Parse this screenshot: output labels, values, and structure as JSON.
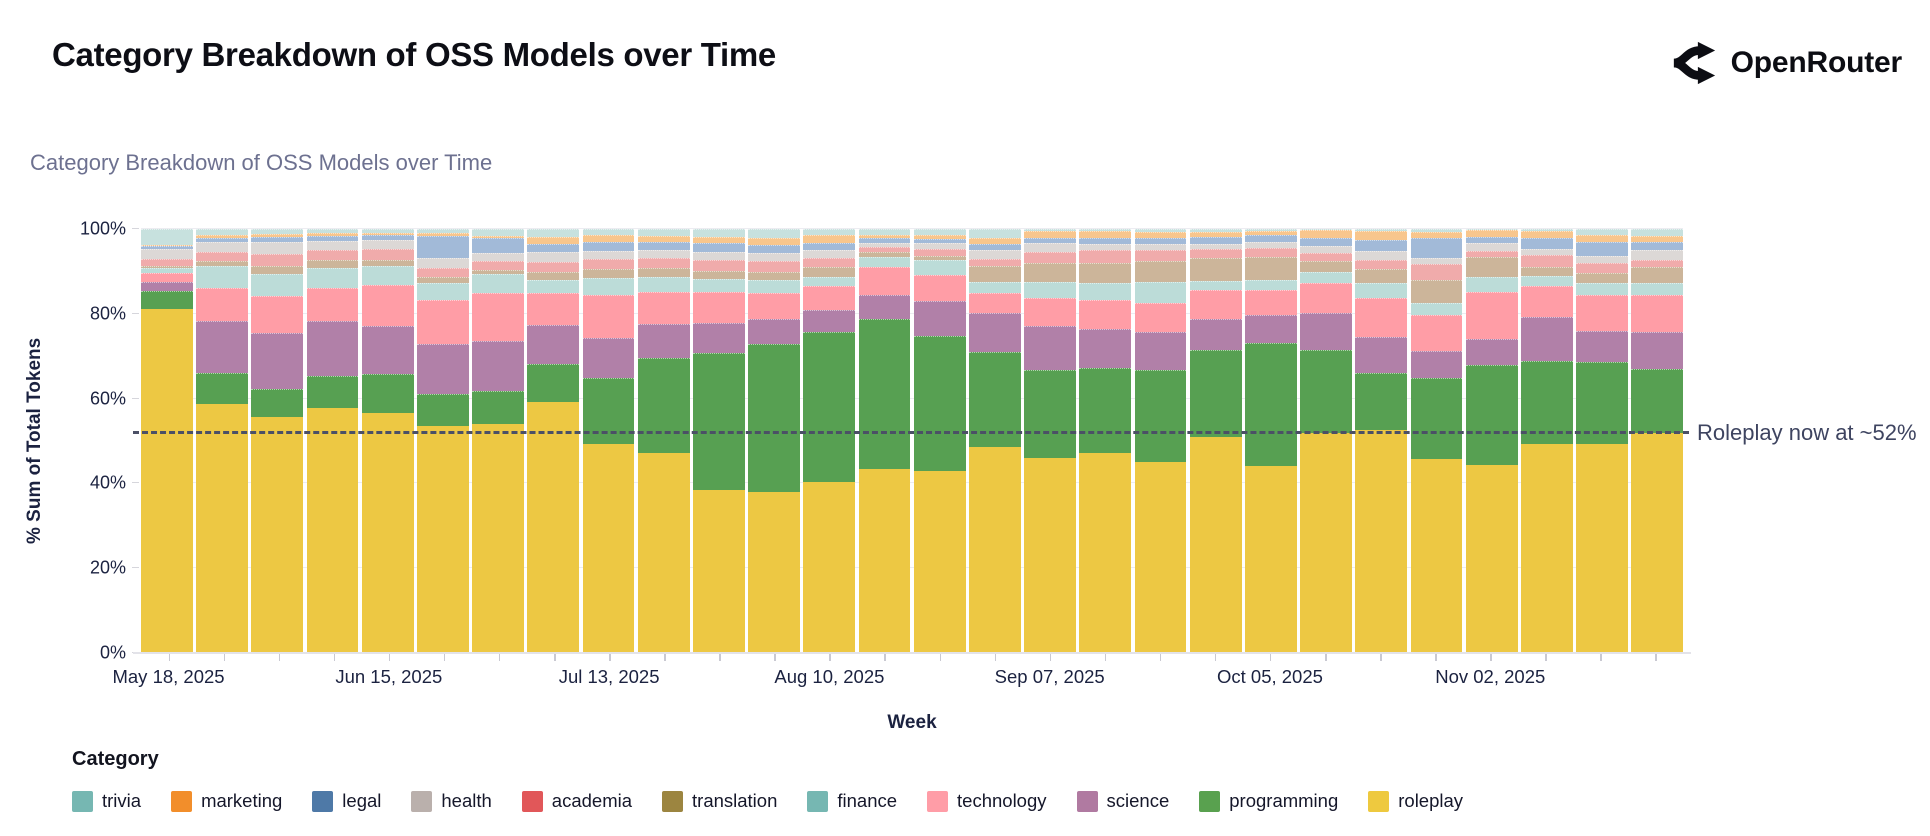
{
  "header": {
    "title": "Category Breakdown of OSS Models over Time",
    "logo_text": "OpenRouter"
  },
  "chart_data": {
    "type": "bar",
    "variant": "stacked-100-percent",
    "title": "Category Breakdown of OSS Models over Time",
    "xlabel": "Week",
    "ylabel": "% Sum of Total Tokens",
    "ylim": [
      0,
      100
    ],
    "grid": "horizontal",
    "legend_position": "bottom",
    "n_bars": 28,
    "y_ticks": [
      {
        "value": 0,
        "label": "0%"
      },
      {
        "value": 20,
        "label": "20%"
      },
      {
        "value": 40,
        "label": "40%"
      },
      {
        "value": 60,
        "label": "60%"
      },
      {
        "value": 80,
        "label": "80%"
      },
      {
        "value": 100,
        "label": "100%"
      }
    ],
    "x_ticks": [
      {
        "index": 0,
        "label": "May 18, 2025"
      },
      {
        "index": 4,
        "label": "Jun 15, 2025"
      },
      {
        "index": 8,
        "label": "Jul 13, 2025"
      },
      {
        "index": 12,
        "label": "Aug 10, 2025"
      },
      {
        "index": 16,
        "label": "Sep 07, 2025"
      },
      {
        "index": 20,
        "label": "Oct 05, 2025"
      },
      {
        "index": 24,
        "label": "Nov 02, 2025"
      }
    ],
    "series": [
      {
        "name": "roleplay",
        "bar_color": "#edc843",
        "legend_color": "#eec93f",
        "values": [
          81.2,
          58.7,
          55.7,
          57.8,
          56.7,
          53.6,
          54.0,
          59.3,
          49.2,
          47.1,
          38.4,
          38.0,
          40.4,
          43.4,
          43.0,
          48.6,
          46.0,
          47.2,
          45.1,
          51.0,
          44.1,
          52.0,
          52.6,
          45.7,
          44.3,
          49.4,
          49.4,
          51.8
        ]
      },
      {
        "name": "programming",
        "bar_color": "#57a052",
        "legend_color": "#59a14f",
        "values": [
          4.3,
          7.4,
          6.6,
          7.5,
          9.1,
          7.6,
          7.8,
          8.9,
          15.6,
          22.4,
          32.4,
          35.0,
          35.4,
          35.4,
          31.8,
          22.4,
          20.7,
          20.0,
          21.6,
          20.5,
          29.0,
          19.5,
          13.5,
          19.1,
          23.6,
          19.5,
          19.3,
          15.3
        ]
      },
      {
        "name": "science",
        "bar_color": "#b180a8",
        "legend_color": "#b07aa1",
        "values": [
          2.1,
          12.2,
          13.2,
          13.0,
          11.4,
          11.7,
          11.8,
          9.2,
          9.6,
          8.1,
          7.0,
          5.7,
          5.1,
          5.6,
          8.2,
          9.2,
          10.5,
          9.2,
          9.1,
          7.2,
          6.6,
          8.6,
          8.5,
          6.5,
          6.1,
          10.3,
          7.3,
          8.7
        ]
      },
      {
        "name": "technology",
        "bar_color": "#ff9da6",
        "legend_color": "#ff9da7",
        "values": [
          2.1,
          7.7,
          8.8,
          7.8,
          9.6,
          10.4,
          11.3,
          7.4,
          10.0,
          7.6,
          7.4,
          6.3,
          5.7,
          6.7,
          6.2,
          4.7,
          6.5,
          6.9,
          6.8,
          6.9,
          5.9,
          7.1,
          9.1,
          8.4,
          11.2,
          7.4,
          8.4,
          8.6
        ]
      },
      {
        "name": "finance",
        "bar_color": "#bcdcd8",
        "legend_color": "#76b7b2",
        "values": [
          1.2,
          5.4,
          5.0,
          4.7,
          4.4,
          3.9,
          4.5,
          3.2,
          4.0,
          3.5,
          2.9,
          3.0,
          2.1,
          2.4,
          3.5,
          2.6,
          3.9,
          3.9,
          5.0,
          2.2,
          2.3,
          2.7,
          3.5,
          2.9,
          3.4,
          2.3,
          2.8,
          2.8
        ]
      },
      {
        "name": "translation",
        "bar_color": "#ccb59a",
        "legend_color": "#9c8540",
        "values": [
          0.5,
          1.1,
          2.1,
          1.8,
          1.4,
          1.5,
          1.0,
          1.9,
          2.1,
          2.0,
          2.1,
          1.9,
          2.3,
          1.0,
          1.0,
          3.9,
          4.5,
          4.8,
          4.9,
          5.4,
          5.5,
          2.6,
          3.3,
          5.5,
          4.7,
          2.1,
          2.4,
          3.8
        ]
      },
      {
        "name": "academia",
        "bar_color": "#f0abab",
        "legend_color": "#e15759",
        "values": [
          1.6,
          2.1,
          2.8,
          2.5,
          2.6,
          2.0,
          2.0,
          2.4,
          2.4,
          2.4,
          2.5,
          2.6,
          2.1,
          1.3,
          1.5,
          1.6,
          2.6,
          3.0,
          2.5,
          2.1,
          2.1,
          1.9,
          2.2,
          3.6,
          1.6,
          2.9,
          2.3,
          1.7
        ]
      },
      {
        "name": "health",
        "bar_color": "#dcd8d6",
        "legend_color": "#bab0ac",
        "values": [
          2.4,
          2.4,
          2.8,
          2.0,
          2.2,
          2.4,
          2.0,
          2.2,
          1.9,
          1.9,
          2.0,
          1.9,
          1.9,
          1.0,
          1.5,
          2.0,
          1.9,
          1.5,
          1.5,
          1.3,
          1.5,
          1.6,
          2.1,
          1.5,
          1.7,
          1.5,
          1.7,
          2.3
        ]
      },
      {
        "name": "legal",
        "bar_color": "#a2bad8",
        "legend_color": "#4e79a7",
        "values": [
          0.6,
          1.0,
          1.2,
          1.3,
          1.1,
          5.3,
          3.4,
          2.0,
          2.1,
          2.0,
          1.9,
          1.8,
          1.8,
          1.0,
          1.0,
          1.5,
          1.4,
          1.5,
          1.5,
          1.6,
          1.5,
          2.0,
          2.6,
          4.6,
          1.6,
          2.6,
          3.4,
          2.0
        ]
      },
      {
        "name": "marketing",
        "bar_color": "#f8c68d",
        "legend_color": "#f28e2b",
        "values": [
          0.3,
          0.5,
          0.6,
          0.7,
          0.5,
          0.6,
          0.6,
          1.6,
          1.7,
          1.3,
          1.6,
          1.8,
          1.8,
          0.8,
          0.8,
          1.5,
          1.6,
          1.5,
          1.4,
          1.2,
          1.0,
          1.7,
          2.2,
          1.4,
          1.5,
          1.6,
          1.6,
          1.3
        ]
      },
      {
        "name": "trivia",
        "bar_color": "#c7e1de",
        "legend_color": "#76b7b2",
        "values": [
          3.7,
          1.5,
          1.2,
          0.9,
          1.0,
          1.0,
          1.6,
          1.9,
          1.4,
          1.7,
          1.8,
          2.0,
          1.4,
          1.4,
          1.5,
          2.0,
          0.4,
          0.5,
          0.6,
          0.6,
          0.5,
          0.3,
          0.4,
          0.8,
          0.3,
          0.4,
          1.4,
          1.7
        ]
      }
    ],
    "legend": {
      "title": "Category",
      "items": [
        {
          "label": "trivia",
          "color": "#76b7b2"
        },
        {
          "label": "marketing",
          "color": "#f28e2b"
        },
        {
          "label": "legal",
          "color": "#4e79a7"
        },
        {
          "label": "health",
          "color": "#bab0ac"
        },
        {
          "label": "academia",
          "color": "#e15759"
        },
        {
          "label": "translation",
          "color": "#9c8540"
        },
        {
          "label": "finance",
          "color": "#76b7b2"
        },
        {
          "label": "technology",
          "color": "#ff9da7"
        },
        {
          "label": "science",
          "color": "#b07aa1"
        },
        {
          "label": "programming",
          "color": "#59a14f"
        },
        {
          "label": "roleplay",
          "color": "#eec93f"
        }
      ]
    },
    "annotation": {
      "text": "Roleplay now at ~52%",
      "value_percent": 52,
      "line_style": "dashed",
      "line_color": "#4b5066"
    }
  }
}
